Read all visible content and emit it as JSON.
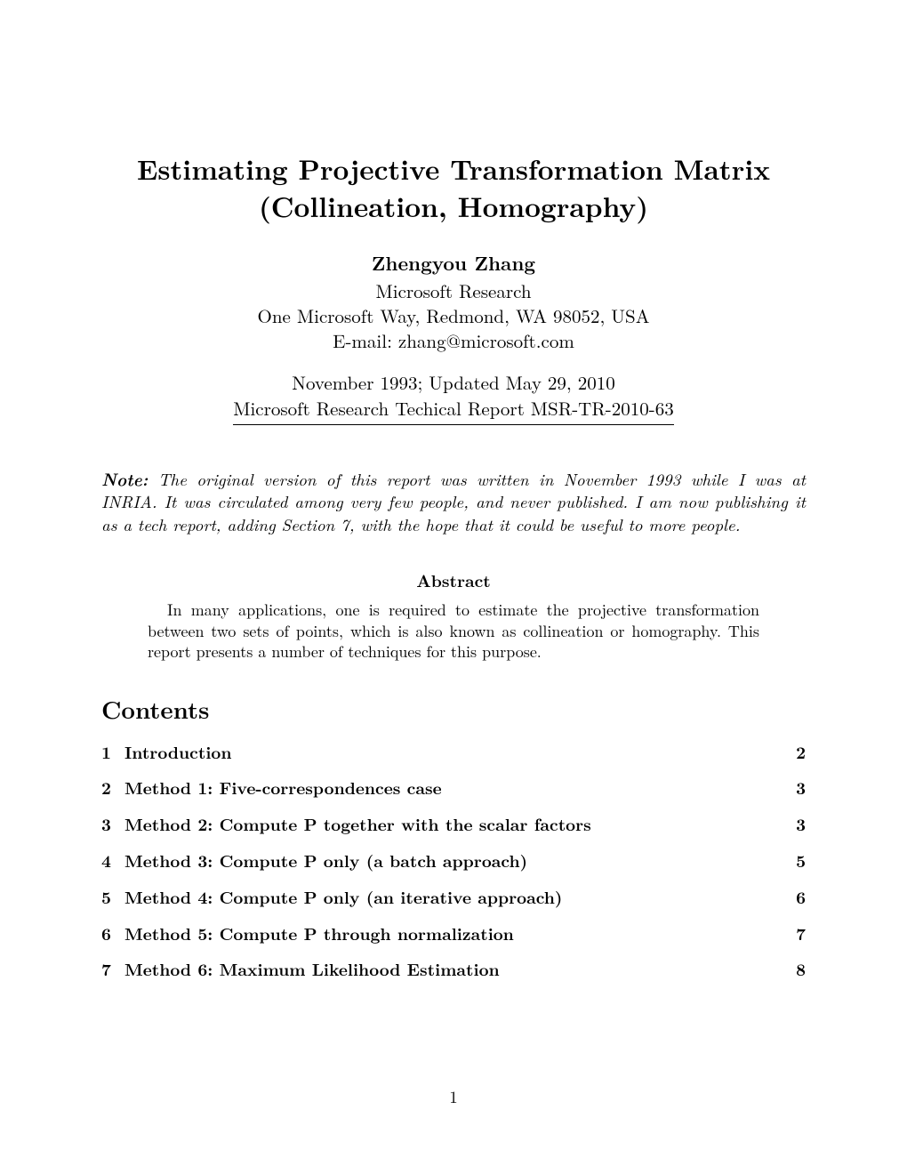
{
  "title_line1": "Estimating Projective Transformation Matrix",
  "title_line2": "(Collineation, Homography)",
  "author": {
    "name": "Zhengyou Zhang",
    "affiliation": "Microsoft Research",
    "address": "One Microsoft Way, Redmond, WA 98052, USA",
    "email": "E-mail: zhang@microsoft.com"
  },
  "date_line": "November 1993; Updated May 29, 2010",
  "report_line": "Microsoft Research Techical Report MSR-TR-2010-63",
  "note_label": "Note:",
  "note_text": "The original version of this report was written in November 1993 while I was at INRIA. It was circulated among very few people, and never published. I am now publishing it as a tech report, adding Section 7, with the hope that it could be useful to more people.",
  "abstract_heading": "Abstract",
  "abstract_text": "In many applications, one is required to estimate the projective transformation between two sets of points, which is also known as collineation or homography. This report presents a number of techniques for this purpose.",
  "contents_heading": "Contents",
  "toc": [
    {
      "num": "1",
      "title": "Introduction",
      "page": "2"
    },
    {
      "num": "2",
      "title": "Method 1: Five-correspondences case",
      "page": "3"
    },
    {
      "num": "3",
      "title": "Method 2: Compute P together with the scalar factors",
      "page": "3"
    },
    {
      "num": "4",
      "title": "Method 3: Compute P only (a batch approach)",
      "page": "5"
    },
    {
      "num": "5",
      "title": "Method 4: Compute P only (an iterative approach)",
      "page": "6"
    },
    {
      "num": "6",
      "title": "Method 5: Compute P through normalization",
      "page": "7"
    },
    {
      "num": "7",
      "title": "Method 6: Maximum Likelihood Estimation",
      "page": "8"
    }
  ],
  "page_number": "1"
}
